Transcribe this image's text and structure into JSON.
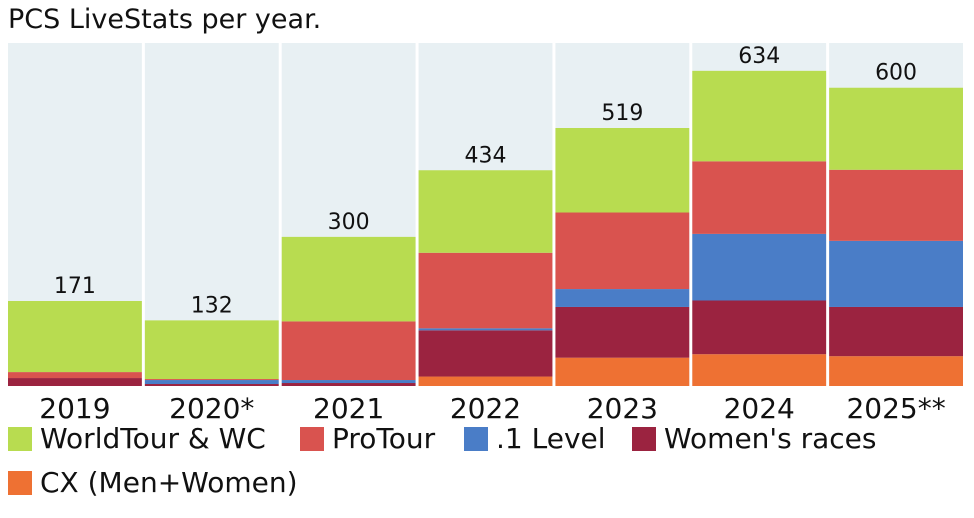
{
  "chart_data": {
    "type": "bar",
    "stacked": true,
    "title": "PCS LiveStats per year.",
    "categories": [
      "2019",
      "2020*",
      "2021",
      "2022",
      "2023",
      "2024",
      "2025**"
    ],
    "totals": [
      171,
      132,
      300,
      434,
      519,
      634,
      600
    ],
    "ylim": [
      0,
      690
    ],
    "series": [
      {
        "name": "CX (Men+Women)",
        "color": "#ee7133",
        "values": [
          0,
          0,
          0,
          19,
          57,
          64,
          60
        ]
      },
      {
        "name": "Women's races",
        "color": "#9b2340",
        "values": [
          16,
          4,
          6,
          93,
          102,
          108,
          99
        ]
      },
      {
        "name": ".1 Level",
        "color": "#4a7dc7",
        "values": [
          0,
          8,
          6,
          4,
          36,
          134,
          133
        ]
      },
      {
        "name": "ProTour",
        "color": "#d9534f",
        "values": [
          12,
          2,
          118,
          152,
          154,
          146,
          143
        ]
      },
      {
        "name": "WorldTour & WC",
        "color": "#b8dc50",
        "values": [
          143,
          118,
          170,
          166,
          170,
          182,
          165
        ]
      }
    ],
    "legend_order": [
      "WorldTour & WC",
      "ProTour",
      ".1 Level",
      "Women's races",
      "CX (Men+Women)"
    ],
    "background_color": "#e8f0f3"
  }
}
